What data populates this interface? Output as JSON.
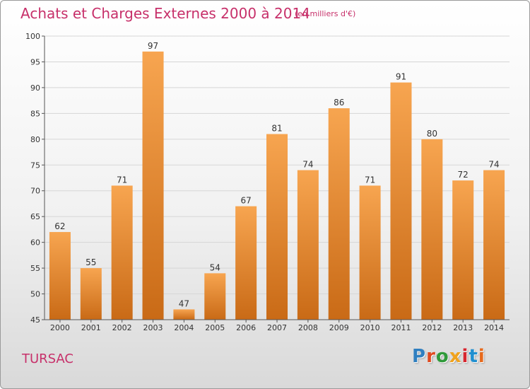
{
  "title": "Achats et Charges Externes 2000 à 2014",
  "subtitle": "(en milliers d'€)",
  "commune": "TURSAC",
  "logo": {
    "text": "Proxiti",
    "colors": [
      "#2f7fc0",
      "#e0491f",
      "#2f9a3a",
      "#f0a21d",
      "#d7262f",
      "#1f8fd0",
      "#e66a1d"
    ]
  },
  "colors": {
    "title": "#c7306a",
    "bar_top": "#f7a550",
    "bar_bottom": "#c96a16"
  },
  "chart_data": {
    "type": "bar",
    "title": "Achats et Charges Externes 2000 à 2014",
    "xlabel": "",
    "ylabel": "",
    "ylim": [
      45,
      100
    ],
    "yticks": [
      45,
      50,
      55,
      60,
      65,
      70,
      75,
      80,
      85,
      90,
      95,
      100
    ],
    "categories": [
      "2000",
      "2001",
      "2002",
      "2003",
      "2004",
      "2005",
      "2006",
      "2007",
      "2008",
      "2009",
      "2010",
      "2011",
      "2012",
      "2013",
      "2014"
    ],
    "values": [
      62,
      55,
      71,
      97,
      47,
      54,
      67,
      81,
      74,
      86,
      71,
      91,
      80,
      72,
      74
    ]
  }
}
